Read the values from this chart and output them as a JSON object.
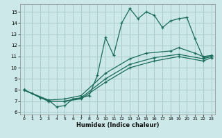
{
  "title": "",
  "xlabel": "Humidex (Indice chaleur)",
  "background_color": "#cce8e8",
  "grid_color": "#aacccc",
  "line_color": "#1a6b5a",
  "xlim": [
    -0.5,
    23.5
  ],
  "ylim": [
    5.8,
    15.7
  ],
  "xticks": [
    0,
    1,
    2,
    3,
    4,
    5,
    6,
    7,
    8,
    9,
    10,
    11,
    12,
    13,
    14,
    15,
    16,
    17,
    18,
    19,
    20,
    21,
    22,
    23
  ],
  "yticks": [
    6,
    7,
    8,
    9,
    10,
    11,
    12,
    13,
    14,
    15
  ],
  "series": [
    {
      "x": [
        0,
        1,
        2,
        3,
        4,
        5,
        6,
        7,
        8,
        9,
        10,
        11,
        12,
        13,
        14,
        15,
        16,
        17,
        18,
        19,
        20,
        21,
        22,
        23
      ],
      "y": [
        8,
        7.7,
        7.3,
        7.1,
        6.5,
        6.6,
        7.2,
        7.3,
        7.5,
        9.3,
        12.7,
        11.1,
        14.0,
        15.3,
        14.4,
        15.0,
        14.7,
        13.6,
        14.2,
        14.4,
        14.5,
        12.6,
        10.9,
        11.0
      ]
    },
    {
      "x": [
        0,
        3,
        5,
        7,
        10,
        13,
        15,
        18,
        19,
        21,
        22,
        23
      ],
      "y": [
        8,
        7.1,
        7.2,
        7.5,
        9.5,
        10.8,
        11.3,
        11.5,
        11.8,
        11.3,
        11.0,
        11.1
      ]
    },
    {
      "x": [
        0,
        3,
        5,
        7,
        10,
        13,
        16,
        19,
        22,
        23
      ],
      "y": [
        8,
        7.0,
        7.0,
        7.3,
        9.0,
        10.3,
        10.9,
        11.2,
        10.8,
        11.0
      ]
    },
    {
      "x": [
        0,
        3,
        5,
        7,
        10,
        13,
        16,
        19,
        22,
        23
      ],
      "y": [
        8,
        7.0,
        7.0,
        7.2,
        8.7,
        10.0,
        10.6,
        11.0,
        10.6,
        10.9
      ]
    }
  ]
}
